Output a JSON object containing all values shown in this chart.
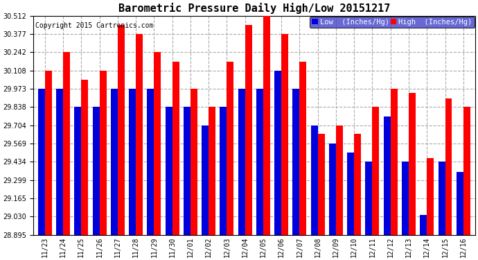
{
  "title": "Barometric Pressure Daily High/Low 20151217",
  "copyright": "Copyright 2015 Cartronics.com",
  "legend_low": "Low  (Inches/Hg)",
  "legend_high": "High  (Inches/Hg)",
  "dates": [
    "11/23",
    "11/24",
    "11/25",
    "11/26",
    "11/27",
    "11/28",
    "11/29",
    "11/30",
    "12/01",
    "12/02",
    "12/03",
    "12/04",
    "12/05",
    "12/06",
    "12/07",
    "12/08",
    "12/09",
    "12/10",
    "12/11",
    "12/12",
    "12/13",
    "12/14",
    "12/15",
    "12/16"
  ],
  "low_values": [
    29.973,
    29.973,
    29.838,
    29.838,
    29.973,
    29.973,
    29.973,
    29.838,
    29.838,
    29.704,
    29.838,
    29.973,
    29.973,
    30.108,
    29.973,
    29.704,
    29.569,
    29.504,
    29.434,
    29.77,
    29.434,
    29.04,
    29.434,
    29.36
  ],
  "high_values": [
    30.108,
    30.242,
    30.04,
    30.108,
    30.445,
    30.377,
    30.242,
    30.175,
    29.973,
    29.838,
    30.175,
    30.445,
    30.512,
    30.377,
    30.175,
    29.64,
    29.704,
    29.638,
    29.838,
    29.973,
    29.94,
    29.46,
    29.9,
    29.838
  ],
  "ylim_min": 28.895,
  "ylim_max": 30.512,
  "yticks": [
    28.895,
    29.03,
    29.165,
    29.299,
    29.434,
    29.569,
    29.704,
    29.838,
    29.973,
    30.108,
    30.242,
    30.377,
    30.512
  ],
  "bar_color_low": "#0000dd",
  "bar_color_high": "#ff0000",
  "bg_color": "#ffffff",
  "grid_color": "#aaaaaa",
  "title_fontsize": 11,
  "copyright_fontsize": 7,
  "tick_fontsize": 7,
  "legend_fontsize": 7.5,
  "bar_width": 0.38
}
